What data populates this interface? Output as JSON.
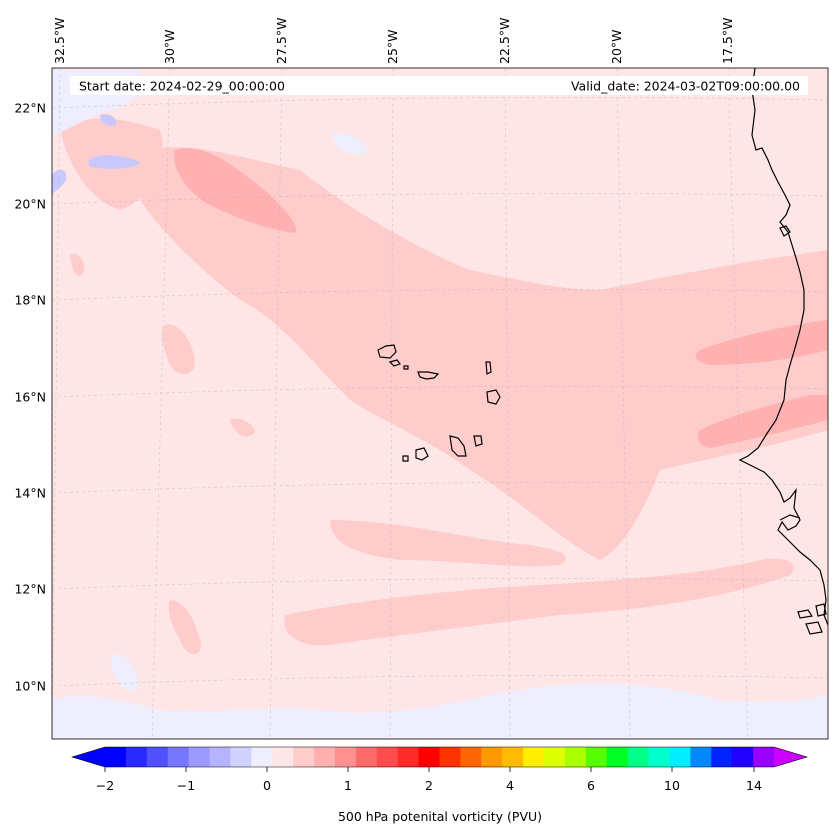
{
  "header": {
    "start_date": "Start date: 2024-02-29_00:00:00",
    "valid_date": "Valid_date: 2024-03-02T09:00:00.00"
  },
  "map": {
    "lon_labels": [
      "32.5°W",
      "30°W",
      "27.5°W",
      "25°W",
      "22.5°W",
      "20°W",
      "17.5°W"
    ],
    "lat_labels": [
      "22°N",
      "20°N",
      "18°N",
      "16°N",
      "14°N",
      "12°N",
      "10°N"
    ],
    "field_colors": {
      "background": "#ffe6e6",
      "light_pink": "#ffcccc",
      "medium_pink": "#ffb0b0",
      "light_lavender": "#eeeeff",
      "lavender": "#c8c8ff"
    },
    "coastline_color": "#000000"
  },
  "colorbar": {
    "title": "500 hPa potenital vorticity (PVU)",
    "tick_labels": [
      "−2",
      "−1",
      "0",
      "1",
      "2",
      "4",
      "6",
      "10",
      "14"
    ],
    "colors": [
      "#0000ff",
      "#2a2aff",
      "#5050ff",
      "#7676ff",
      "#9a9aff",
      "#b4b4ff",
      "#d2d2ff",
      "#eeeeff",
      "#ffe6e6",
      "#ffcccc",
      "#ffb0b0",
      "#ff9090",
      "#ff6a6a",
      "#ff4c4c",
      "#ff2a2a",
      "#ff0000",
      "#ff3300",
      "#ff6600",
      "#ff9900",
      "#ffbb00",
      "#ffee00",
      "#ddff00",
      "#aaff00",
      "#55ff00",
      "#00ff22",
      "#00ff88",
      "#00ffcc",
      "#00eeff",
      "#0088ff",
      "#0022ff",
      "#2200ff",
      "#9900ff"
    ],
    "extend_min_color": "#0000ff",
    "extend_max_color": "#cc00ff"
  }
}
